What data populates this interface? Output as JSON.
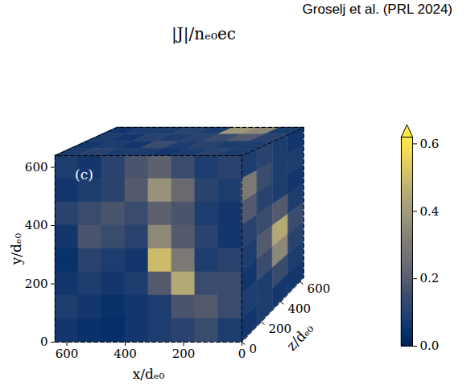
{
  "chart_data": {
    "type": "heatmap",
    "title": "|J|/nₑ₀ec",
    "panel_label": "(c)",
    "source": "Groselj et al. (PRL 2024)",
    "x_label": "x/dₑ₀",
    "y_label": "y/dₑ₀",
    "z_label": "z/dₑ₀",
    "xlim": [
      0,
      640
    ],
    "ylim": [
      0,
      640
    ],
    "zlim": [
      0,
      640
    ],
    "xticks": [
      0,
      200,
      400,
      600
    ],
    "yticks": [
      0,
      200,
      400,
      600
    ],
    "zticks": [
      0,
      200,
      400,
      600
    ],
    "color": "cividis",
    "colorbar": {
      "range": [
        0,
        0.62
      ],
      "ticks": [
        {
          "value": 0,
          "label": "0.0"
        },
        0.2,
        0.4,
        0.6
      ]
    },
    "faces": {
      "front": {
        "x_edges": [
          640,
          560,
          480,
          400,
          320,
          240,
          160,
          80,
          0
        ],
        "y_edges": [
          640,
          560,
          480,
          400,
          320,
          240,
          160,
          80,
          0
        ],
        "cells": [
          [
            0.1,
            0.08,
            0.12,
            0.18,
            0.22,
            0.15,
            0.1,
            0.12
          ],
          [
            0.08,
            0.1,
            0.12,
            0.2,
            0.38,
            0.25,
            0.12,
            0.1
          ],
          [
            0.12,
            0.15,
            0.18,
            0.15,
            0.22,
            0.18,
            0.1,
            0.08
          ],
          [
            0.08,
            0.18,
            0.15,
            0.12,
            0.35,
            0.2,
            0.12,
            0.08
          ],
          [
            0.06,
            0.12,
            0.1,
            0.08,
            0.5,
            0.3,
            0.1,
            0.12
          ],
          [
            0.08,
            0.1,
            0.08,
            0.1,
            0.2,
            0.45,
            0.15,
            0.15
          ],
          [
            0.1,
            0.08,
            0.06,
            0.08,
            0.1,
            0.18,
            0.2,
            0.15
          ],
          [
            0.08,
            0.06,
            0.05,
            0.08,
            0.1,
            0.12,
            0.15,
            0.1
          ]
        ]
      },
      "top": {
        "x_edges": [
          640,
          560,
          480,
          400,
          320,
          240,
          160,
          80,
          0
        ],
        "z_edges": [
          640,
          480,
          320,
          160,
          0
        ],
        "cells": [
          [
            0.08,
            0.1,
            0.1,
            0.12,
            0.1,
            0.4,
            0.35,
            0.1
          ],
          [
            0.1,
            0.08,
            0.12,
            0.1,
            0.12,
            0.15,
            0.2,
            0.12
          ],
          [
            0.08,
            0.1,
            0.08,
            0.15,
            0.1,
            0.12,
            0.1,
            0.1
          ],
          [
            0.1,
            0.12,
            0.1,
            0.1,
            0.08,
            0.1,
            0.12,
            0.1
          ]
        ]
      },
      "side": {
        "z_edges": [
          0,
          160,
          320,
          480,
          640
        ],
        "y_edges": [
          640,
          560,
          480,
          400,
          320,
          240,
          160,
          80,
          0
        ],
        "cells": [
          [
            0.1,
            0.12,
            0.1,
            0.08
          ],
          [
            0.3,
            0.15,
            0.1,
            0.1
          ],
          [
            0.2,
            0.12,
            0.1,
            0.08
          ],
          [
            0.12,
            0.15,
            0.2,
            0.1
          ],
          [
            0.1,
            0.2,
            0.45,
            0.15
          ],
          [
            0.08,
            0.15,
            0.35,
            0.12
          ],
          [
            0.1,
            0.1,
            0.15,
            0.1
          ],
          [
            0.08,
            0.1,
            0.08,
            0.08
          ]
        ]
      }
    }
  }
}
